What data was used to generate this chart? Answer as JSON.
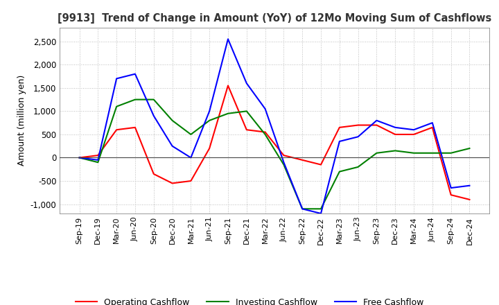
{
  "title": "[9913]  Trend of Change in Amount (YoY) of 12Mo Moving Sum of Cashflows",
  "ylabel": "Amount (million yen)",
  "x_labels": [
    "Sep-19",
    "Dec-19",
    "Mar-20",
    "Jun-20",
    "Sep-20",
    "Dec-20",
    "Mar-21",
    "Jun-21",
    "Sep-21",
    "Dec-21",
    "Mar-22",
    "Jun-22",
    "Sep-22",
    "Dec-22",
    "Mar-23",
    "Jun-23",
    "Sep-23",
    "Dec-23",
    "Mar-24",
    "Jun-24",
    "Sep-24",
    "Dec-24"
  ],
  "operating": [
    0,
    50,
    600,
    650,
    -350,
    -550,
    -500,
    200,
    1550,
    600,
    550,
    50,
    -50,
    -150,
    650,
    700,
    700,
    500,
    500,
    650,
    -800,
    -900
  ],
  "investing": [
    0,
    -100,
    1100,
    1250,
    1250,
    800,
    500,
    800,
    950,
    1000,
    500,
    -150,
    -1100,
    -1100,
    -300,
    -200,
    100,
    150,
    100,
    100,
    100,
    200
  ],
  "free": [
    0,
    -50,
    1700,
    1800,
    900,
    250,
    0,
    1000,
    2550,
    1600,
    1050,
    -100,
    -1100,
    -1200,
    350,
    450,
    800,
    650,
    600,
    750,
    -650,
    -600
  ],
  "ylim": [
    -1200,
    2800
  ],
  "yticks": [
    -1000,
    -500,
    0,
    500,
    1000,
    1500,
    2000,
    2500
  ],
  "operating_color": "#ff0000",
  "investing_color": "#008000",
  "free_color": "#0000ff",
  "bg_color": "#ffffff",
  "grid_color": "#bbbbbb"
}
